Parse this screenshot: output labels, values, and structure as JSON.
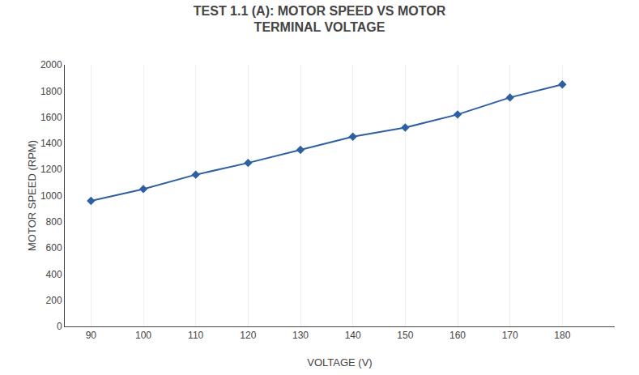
{
  "chart_data": {
    "type": "line",
    "title": "TEST 1.1 (A): MOTOR SPEED VS MOTOR\nTERMINAL VOLTAGE",
    "xlabel": "VOLTAGE (V)",
    "ylabel": "MOTOR SPEED (RPM)",
    "x": [
      90,
      100,
      110,
      120,
      130,
      140,
      150,
      160,
      170,
      180
    ],
    "values": [
      960,
      1050,
      1160,
      1250,
      1350,
      1450,
      1520,
      1620,
      1750,
      1850
    ],
    "color": "#2E5FA3",
    "marker": "diamond",
    "xlim": [
      85,
      190
    ],
    "xticks": [
      90,
      100,
      110,
      120,
      130,
      140,
      150,
      160,
      170,
      180
    ],
    "ylim": [
      0,
      2000
    ],
    "yticks": [
      0,
      200,
      400,
      600,
      800,
      1000,
      1200,
      1400,
      1600,
      1800,
      2000
    ],
    "grid": "x"
  }
}
